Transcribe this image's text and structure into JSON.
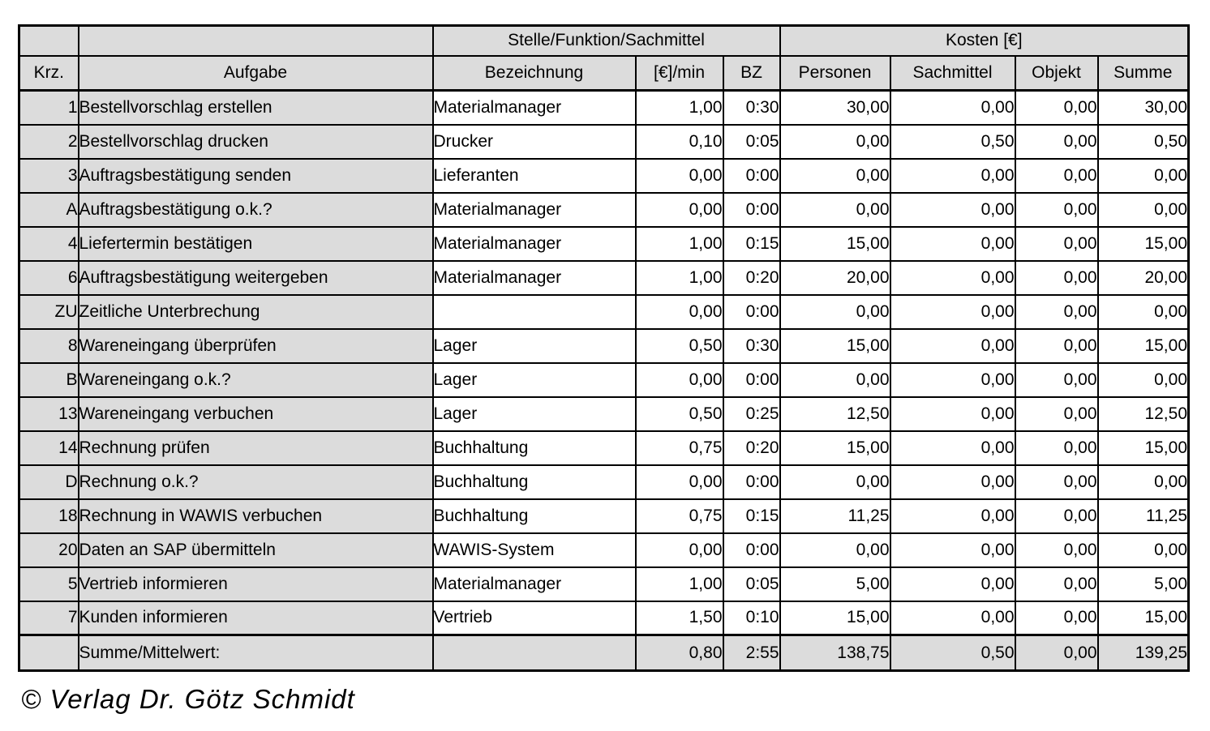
{
  "chart_data": {
    "type": "table",
    "group_headers": {
      "stelle_funktion_sachmittel": "Stelle/Funktion/Sachmittel",
      "kosten": "Kosten [€]"
    },
    "columns": [
      "Krz.",
      "Aufgabe",
      "Bezeichnung",
      "[€]/min",
      "BZ",
      "Personen",
      "Sachmittel",
      "Objekt",
      "Summe"
    ],
    "rows": [
      [
        "1",
        "Bestellvorschlag erstellen",
        "Materialmanager",
        "1,00",
        "0:30",
        "30,00",
        "0,00",
        "0,00",
        "30,00"
      ],
      [
        "2",
        "Bestellvorschlag drucken",
        "Drucker",
        "0,10",
        "0:05",
        "0,00",
        "0,50",
        "0,00",
        "0,50"
      ],
      [
        "3",
        "Auftragsbestätigung senden",
        "Lieferanten",
        "0,00",
        "0:00",
        "0,00",
        "0,00",
        "0,00",
        "0,00"
      ],
      [
        "A",
        "Auftragsbestätigung o.k.?",
        "Materialmanager",
        "0,00",
        "0:00",
        "0,00",
        "0,00",
        "0,00",
        "0,00"
      ],
      [
        "4",
        "Liefertermin bestätigen",
        "Materialmanager",
        "1,00",
        "0:15",
        "15,00",
        "0,00",
        "0,00",
        "15,00"
      ],
      [
        "6",
        "Auftragsbestätigung weitergeben",
        "Materialmanager",
        "1,00",
        "0:20",
        "20,00",
        "0,00",
        "0,00",
        "20,00"
      ],
      [
        "ZU",
        "Zeitliche Unterbrechung",
        "",
        "0,00",
        "0:00",
        "0,00",
        "0,00",
        "0,00",
        "0,00"
      ],
      [
        "8",
        "Wareneingang überprüfen",
        "Lager",
        "0,50",
        "0:30",
        "15,00",
        "0,00",
        "0,00",
        "15,00"
      ],
      [
        "B",
        "Wareneingang o.k.?",
        "Lager",
        "0,00",
        "0:00",
        "0,00",
        "0,00",
        "0,00",
        "0,00"
      ],
      [
        "13",
        "Wareneingang verbuchen",
        "Lager",
        "0,50",
        "0:25",
        "12,50",
        "0,00",
        "0,00",
        "12,50"
      ],
      [
        "14",
        "Rechnung prüfen",
        "Buchhaltung",
        "0,75",
        "0:20",
        "15,00",
        "0,00",
        "0,00",
        "15,00"
      ],
      [
        "D",
        "Rechnung o.k.?",
        "Buchhaltung",
        "0,00",
        "0:00",
        "0,00",
        "0,00",
        "0,00",
        "0,00"
      ],
      [
        "18",
        "Rechnung in WAWIS verbuchen",
        "Buchhaltung",
        "0,75",
        "0:15",
        "11,25",
        "0,00",
        "0,00",
        "11,25"
      ],
      [
        "20",
        "Daten an SAP übermitteln",
        "WAWIS-System",
        "0,00",
        "0:00",
        "0,00",
        "0,00",
        "0,00",
        "0,00"
      ],
      [
        "5",
        "Vertrieb informieren",
        "Materialmanager",
        "1,00",
        "0:05",
        "5,00",
        "0,00",
        "0,00",
        "5,00"
      ],
      [
        "7",
        "Kunden informieren",
        "Vertrieb",
        "1,50",
        "0:10",
        "15,00",
        "0,00",
        "0,00",
        "15,00"
      ]
    ],
    "summary_row": [
      "",
      "Summe/Mittelwert:",
      "",
      "0,80",
      "2:55",
      "138,75",
      "0,50",
      "0,00",
      "139,25"
    ],
    "layout_hints": {
      "header_background": "#dcdcdc",
      "row_label_background": "#dcdcdc",
      "data_cell_background": "#ffffff",
      "border_color": "#000000"
    }
  },
  "copyright": "© Verlag Dr. Götz Schmidt"
}
